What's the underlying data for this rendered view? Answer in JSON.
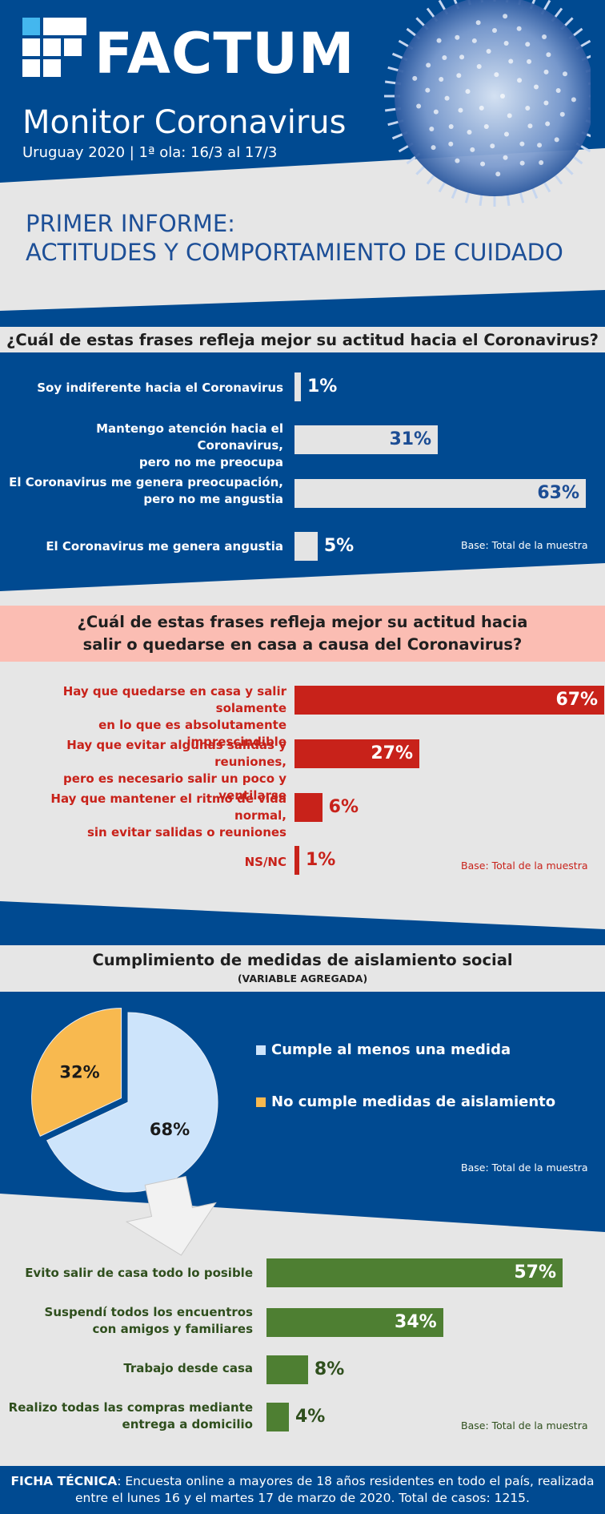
{
  "header": {
    "brand": "FACTUM",
    "title": "Monitor Coronavirus",
    "subtitle": "Uruguay 2020 | 1ª ola: 16/3 al 17/3",
    "report_line1": "PRIMER INFORME:",
    "report_line2": "ACTITUDES Y COMPORTAMIENTO DE CUIDADO"
  },
  "colors": {
    "blue": "#004a91",
    "grey_bar": "#e4e4e4",
    "red": "#c8221a",
    "pink_band": "#fbbdb3",
    "green": "#4e7f32",
    "pie_light": "#cde4fb",
    "pie_orange": "#f8b94f"
  },
  "section1": {
    "question": "¿Cuál de estas frases refleja mejor su actitud hacia el Coronavirus?",
    "base": "Base: Total de la muestra"
  },
  "section2": {
    "question_line1": "¿Cuál de estas frases refleja mejor su actitud hacia",
    "question_line2": "salir o quedarse en casa a causa del Coronavirus?",
    "base": "Base: Total de la muestra"
  },
  "section3": {
    "title": "Cumplimiento de medidas de aislamiento social",
    "subtitle": "(VARIABLE AGREGADA)",
    "legend_complies": "Cumple al menos una medida",
    "legend_not": "No cumple medidas de aislamiento",
    "base": "Base: Total de la muestra",
    "base2": "Base: Total de la muestra"
  },
  "footer": {
    "label": "FICHA TÉCNICA",
    "line1": ": Encuesta online a mayores de 18 años residentes en todo el país, realizada",
    "line2": "entre el lunes 16 y el martes 17 de marzo de 2020. Total de casos: 1215."
  },
  "chart_data": [
    {
      "type": "bar",
      "title": "¿Cuál de estas frases refleja mejor su actitud hacia el Coronavirus?",
      "categories": [
        [
          "Soy indiferente hacia el Coronavirus"
        ],
        [
          "Mantengo atención hacia el Coronavirus,",
          "pero no me preocupa"
        ],
        [
          "El Coronavirus me genera preocupación,",
          "pero no me angustia"
        ],
        [
          "El Coronavirus me genera angustia"
        ]
      ],
      "values": [
        1,
        31,
        63,
        5
      ],
      "value_labels": [
        "1%",
        "31%",
        "63%",
        "5%"
      ],
      "xlim": [
        0,
        63
      ]
    },
    {
      "type": "bar",
      "title": "¿Cuál de estas frases refleja mejor su actitud hacia salir o quedarse en casa a causa del Coronavirus?",
      "categories": [
        [
          "Hay que quedarse en casa y salir solamente",
          "en lo que es absolutamente imprescindible"
        ],
        [
          "Hay que evitar algunas salidas y reuniones,",
          "pero es necesario salir un poco y ventilarse"
        ],
        [
          "Hay que mantener el ritmo de vida normal,",
          "sin evitar salidas o reuniones"
        ],
        [
          "NS/NC"
        ]
      ],
      "values": [
        67,
        27,
        6,
        1
      ],
      "value_labels": [
        "67%",
        "27%",
        "6%",
        "1%"
      ],
      "xlim": [
        0,
        63
      ]
    },
    {
      "type": "pie",
      "title": "Cumplimiento de medidas de aislamiento social",
      "labels": [
        "Cumple al menos una medida",
        "No cumple medidas de aislamiento"
      ],
      "values": [
        68,
        32
      ],
      "value_labels": [
        "68%",
        "32%"
      ]
    },
    {
      "type": "bar",
      "categories": [
        [
          "Evito salir de casa todo lo posible"
        ],
        [
          "Suspendí todos los encuentros",
          "con amigos y familiares"
        ],
        [
          "Trabajo desde casa"
        ],
        [
          "Realizo todas las compras mediante",
          "entrega a domicilio"
        ]
      ],
      "values": [
        57,
        34,
        8,
        4
      ],
      "value_labels": [
        "57%",
        "34%",
        "8%",
        "4%"
      ],
      "xlim": [
        0,
        57
      ]
    }
  ]
}
